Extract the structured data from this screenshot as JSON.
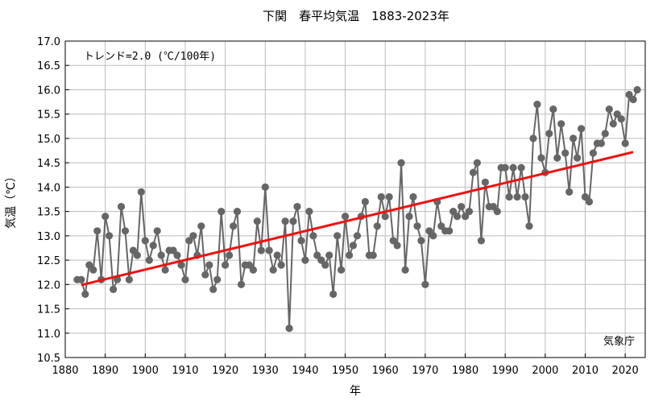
{
  "chart_data": {
    "type": "line",
    "title": "下関　春平均気温　1883-2023年",
    "xlabel": "年",
    "ylabel": "気温（℃）",
    "xlim": [
      1880,
      2025
    ],
    "ylim": [
      10.5,
      17.0
    ],
    "x_ticks": [
      "1880",
      "1890",
      "1900",
      "1910",
      "1920",
      "1930",
      "1940",
      "1950",
      "1960",
      "1970",
      "1980",
      "1990",
      "2000",
      "2010",
      "2020"
    ],
    "y_ticks": [
      "10.5",
      "11.0",
      "11.5",
      "12.0",
      "12.5",
      "13.0",
      "13.5",
      "14.0",
      "14.5",
      "15.0",
      "15.5",
      "16.0",
      "16.5",
      "17.0"
    ],
    "annotation": "トレンド=2.0 (℃/100年)",
    "credit": "気象庁",
    "grid": true,
    "colors": {
      "series": "#666666",
      "trend": "#ee1111",
      "grid": "#bbbbbb"
    },
    "series": [
      {
        "x": [
          1883,
          1884,
          1885,
          1886,
          1887,
          1888,
          1889,
          1890,
          1891,
          1892,
          1893,
          1894,
          1895,
          1896,
          1897,
          1898,
          1899,
          1900,
          1901,
          1902,
          1903,
          1904,
          1905,
          1906,
          1907,
          1908,
          1909,
          1910,
          1911,
          1912,
          1913,
          1914,
          1915,
          1916,
          1917,
          1918,
          1919,
          1920,
          1921,
          1922,
          1923,
          1924,
          1925,
          1926,
          1927,
          1928,
          1929,
          1930,
          1931,
          1932,
          1933,
          1934,
          1935,
          1936,
          1937,
          1938,
          1939,
          1940,
          1941,
          1942,
          1943,
          1944,
          1945,
          1946,
          1947,
          1948,
          1949,
          1950,
          1951,
          1952,
          1953,
          1954,
          1955,
          1956,
          1957,
          1958,
          1959,
          1960,
          1961,
          1962,
          1963,
          1964,
          1965,
          1966,
          1967,
          1968,
          1969,
          1970,
          1971,
          1972,
          1973,
          1974,
          1975,
          1976,
          1977,
          1978,
          1979,
          1980,
          1981,
          1982,
          1983,
          1984,
          1985,
          1986,
          1987,
          1988,
          1989,
          1990,
          1991,
          1992,
          1993,
          1994,
          1995,
          1996,
          1997,
          1998,
          1999,
          2000,
          2001,
          2002,
          2003,
          2004,
          2005,
          2006,
          2007,
          2008,
          2009,
          2010,
          2011,
          2012,
          2013,
          2014,
          2015,
          2016,
          2017,
          2018,
          2019,
          2020,
          2021,
          2022,
          2023
        ],
        "values": [
          12.1,
          12.1,
          11.8,
          12.4,
          12.3,
          13.1,
          12.1,
          13.4,
          13.0,
          11.9,
          12.1,
          13.6,
          13.1,
          12.1,
          12.7,
          12.6,
          13.9,
          12.9,
          12.5,
          12.8,
          13.1,
          12.6,
          12.3,
          12.7,
          12.7,
          12.6,
          12.4,
          12.1,
          12.9,
          13.0,
          12.6,
          13.2,
          12.2,
          12.4,
          11.9,
          12.1,
          13.5,
          12.4,
          12.6,
          13.2,
          13.5,
          12.0,
          12.4,
          12.4,
          12.3,
          13.3,
          12.7,
          14.0,
          12.7,
          12.3,
          12.6,
          12.4,
          13.3,
          11.1,
          13.3,
          13.6,
          12.9,
          12.5,
          13.5,
          13.0,
          12.6,
          12.5,
          12.4,
          12.6,
          11.8,
          13.0,
          12.3,
          13.4,
          12.6,
          12.8,
          13.0,
          13.4,
          13.7,
          12.6,
          12.6,
          13.2,
          13.8,
          13.4,
          13.8,
          12.9,
          12.8,
          14.5,
          12.3,
          13.4,
          13.8,
          13.2,
          12.9,
          12.0,
          13.1,
          13.0,
          13.7,
          13.2,
          13.1,
          13.1,
          13.5,
          13.4,
          13.6,
          13.4,
          13.5,
          14.3,
          14.5,
          12.9,
          14.1,
          13.6,
          13.6,
          13.5,
          14.4,
          14.4,
          13.8,
          14.4,
          13.8,
          14.4,
          13.8,
          13.2,
          15.0,
          15.7,
          14.6,
          14.3,
          15.1,
          15.6,
          14.6,
          15.3,
          14.7,
          13.9,
          15.0,
          14.6,
          15.2,
          13.8,
          13.7,
          14.7,
          14.9,
          14.9,
          15.1,
          15.6,
          15.3,
          15.5,
          15.4,
          14.9,
          15.9,
          15.8,
          16.0
        ]
      }
    ],
    "trend": {
      "x": [
        1884,
        2022
      ],
      "values": [
        11.99,
        14.72
      ]
    }
  }
}
